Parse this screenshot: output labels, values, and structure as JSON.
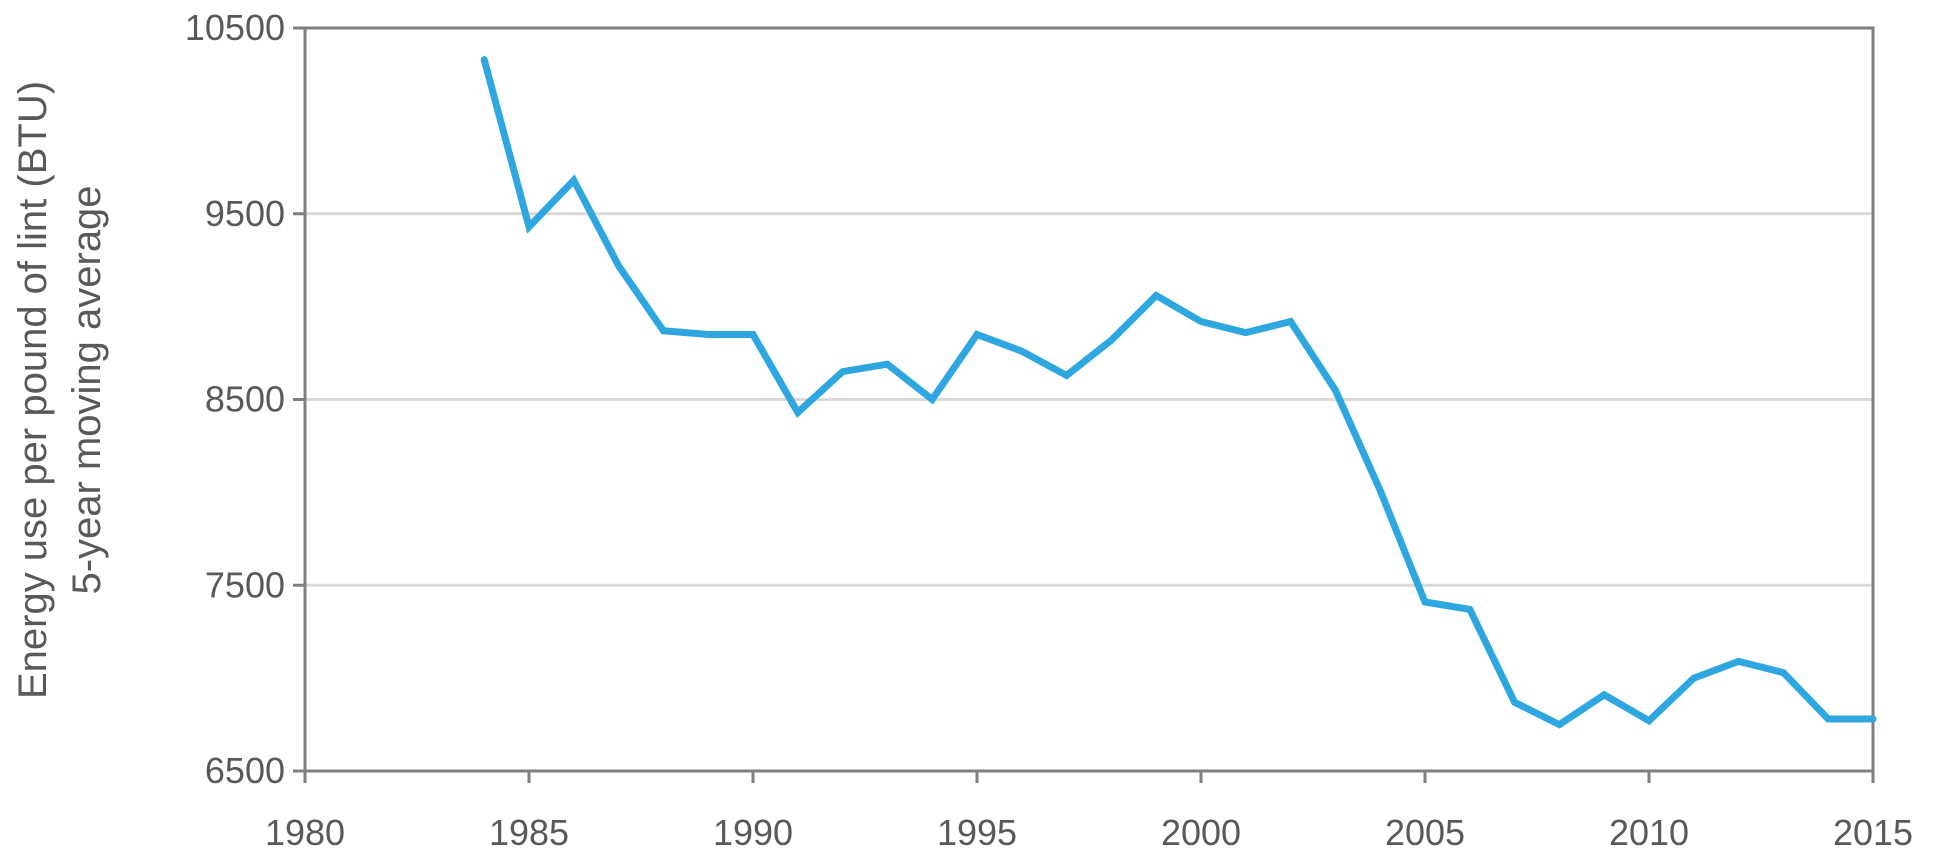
{
  "chart_data": {
    "type": "line",
    "title": "",
    "xlabel": "",
    "ylabel": [
      "Energy use per pound of lint (BTU)",
      "5-year moving average"
    ],
    "xlim": [
      1980,
      2015
    ],
    "ylim": [
      6500,
      10500
    ],
    "xticks": [
      1980,
      1985,
      1990,
      1995,
      2000,
      2005,
      2010,
      2015
    ],
    "yticks": [
      6500,
      7500,
      8500,
      9500,
      10500
    ],
    "grid": "horizontal",
    "legend": "none",
    "series": [
      {
        "color": "#2ea7e0",
        "x": [
          1984,
          1985,
          1986,
          1987,
          1988,
          1989,
          1990,
          1991,
          1992,
          1993,
          1994,
          1995,
          1996,
          1997,
          1998,
          1999,
          2000,
          2001,
          2002,
          2003,
          2004,
          2005,
          2006,
          2007,
          2008,
          2009,
          2010,
          2011,
          2012,
          2013,
          2014,
          2015
        ],
        "y": [
          10330,
          9430,
          9680,
          9220,
          8870,
          8850,
          8850,
          8430,
          8650,
          8690,
          8500,
          8850,
          8760,
          8630,
          8820,
          9060,
          8920,
          8860,
          8920,
          8550,
          8010,
          7410,
          7370,
          6870,
          6750,
          6910,
          6770,
          7000,
          7090,
          7030,
          6780,
          6780
        ]
      }
    ]
  }
}
